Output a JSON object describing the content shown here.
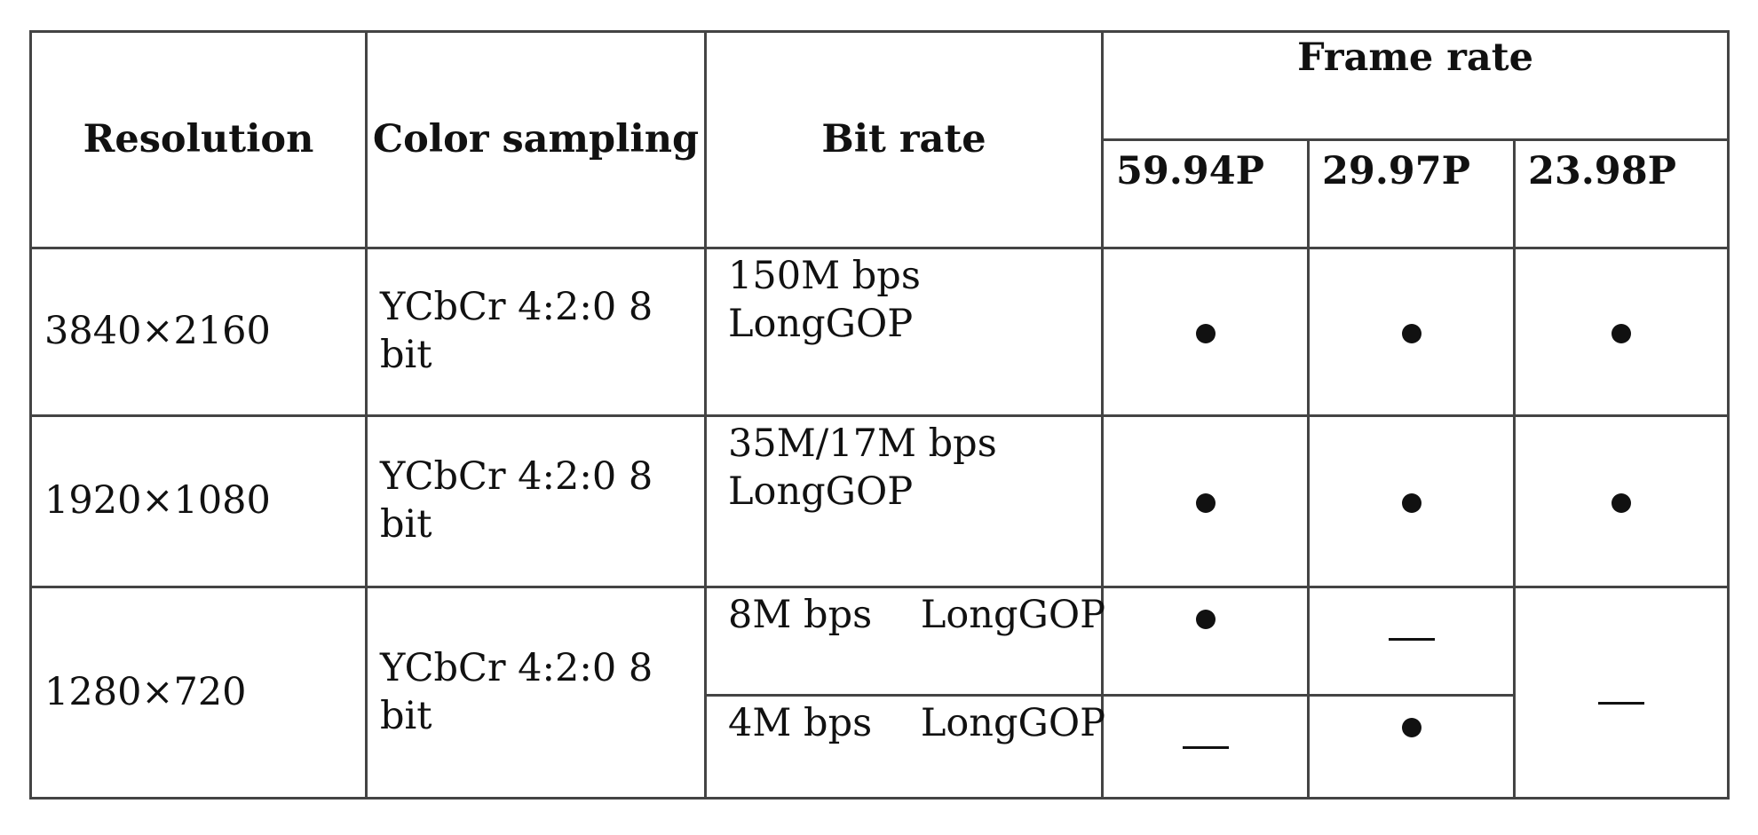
{
  "headers": {
    "resolution": "Resolution",
    "color_sampling": "Color sampling",
    "bit_rate": "Bit rate",
    "frame_rate": "Frame rate",
    "fps_1": "59.94P",
    "fps_2": "29.97P",
    "fps_3": "23.98P"
  },
  "rows": [
    {
      "resolution": "3840×2160",
      "color_sampling": "YCbCr 4:2:0 8 bit",
      "bit_rate_line1": "150M bps",
      "bit_rate_line2": "LongGOP",
      "fps_1": "supported",
      "fps_2": "supported",
      "fps_3": "supported"
    },
    {
      "resolution": "1920×1080",
      "color_sampling": "YCbCr 4:2:0 8 bit",
      "bit_rate_line1": "35M/17M bps",
      "bit_rate_line2": "LongGOP",
      "fps_1": "supported",
      "fps_2": "supported",
      "fps_3": "supported"
    },
    {
      "resolution": "1280×720",
      "color_sampling": "YCbCr 4:2:0 8 bit",
      "sub_rows": [
        {
          "bit_rate": "8M bps    LongGOP",
          "fps_1": "supported",
          "fps_2": "not supported"
        },
        {
          "bit_rate": "4M bps    LongGOP",
          "fps_1": "not supported",
          "fps_2": "supported"
        }
      ],
      "fps_3": "not supported"
    }
  ],
  "symbols": {
    "supported": "filled-dot",
    "not_supported": "dash"
  }
}
